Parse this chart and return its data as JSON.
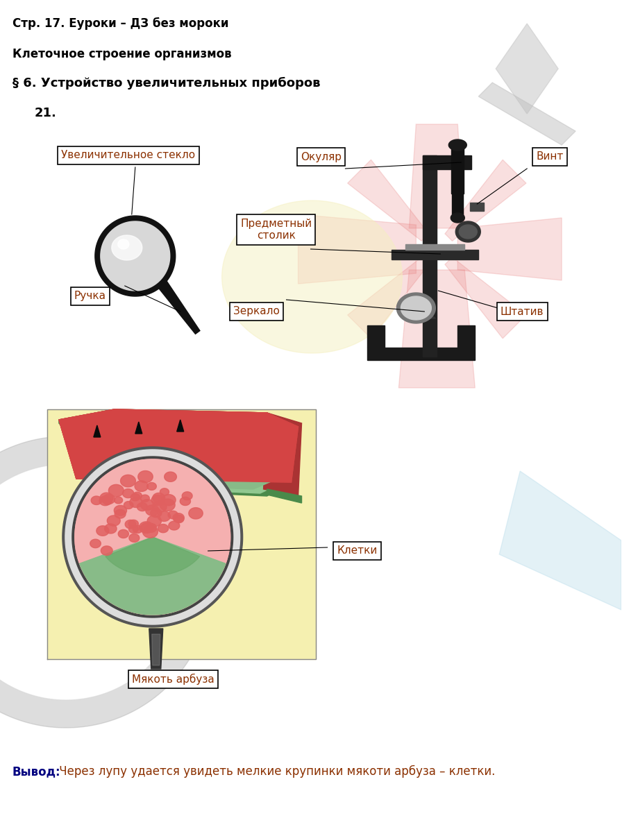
{
  "title1": "Стр. 17. Еуроки – ДЗ без мороки",
  "title2": "Клеточное строение организмов",
  "title3": "§ 6. Устройство увеличительных приборов",
  "number": "21.",
  "conclusion_bold": "Вывод:",
  "conclusion_text": " Через лупу удается увидеть мелкие крупинки мякоти арбуза – клетки.",
  "labels": {
    "uvelichitelnoe": "Увеличительное стекло",
    "okulyar": "Окуляр",
    "vint": "Винт",
    "predmetny": "Предметный\nстолик",
    "ruchka": "Ручка",
    "zerkalo": "Зеркало",
    "shtativ": "Штатив",
    "kletki": "Клетки",
    "myakot": "Мякоть арбуза"
  },
  "bg_color": "#ffffff",
  "text_color": "#000000",
  "label_color": "#8B3000",
  "box_color": "#ffffff",
  "box_edge": "#000000",
  "conclusion_bold_color": "#000080",
  "conclusion_text_color": "#8B3000"
}
